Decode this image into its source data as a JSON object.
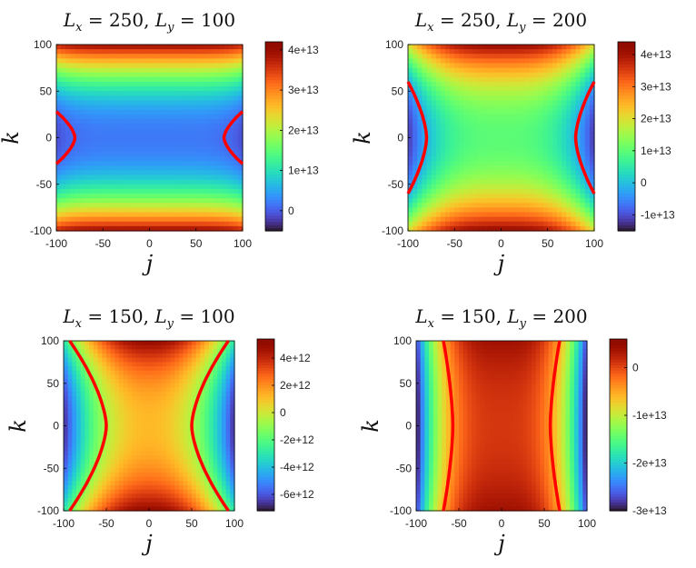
{
  "chart_data": [
    {
      "type": "heatmap",
      "title": "L_x = 250,  L_y = 100",
      "xlabel": "j",
      "ylabel": "k",
      "xlim": [
        -100,
        100
      ],
      "ylim": [
        -100,
        100
      ],
      "xticks": [
        "-100",
        "-50",
        "0",
        "50",
        "100"
      ],
      "yticks": [
        "100",
        "50",
        "0",
        "-50",
        "-100"
      ],
      "colorbar": {
        "min": -5000000000000.0,
        "max": 42000000000000.0,
        "ticks": [
          0,
          10000000000000.0,
          20000000000000.0,
          30000000000000.0,
          40000000000000.0
        ],
        "labels": [
          "0",
          "1e+13",
          "2e+13",
          "3e+13",
          "4e+13"
        ]
      },
      "field": {
        "center": 2000000000000.0,
        "ky_amp": 38000000000000.0,
        "ky_pow": 2.2,
        "jx_amp": -3000000000000.0,
        "jx_pow": 6,
        "corner": 0
      },
      "contour": {
        "shape": "inner",
        "k_extent": 28,
        "j_edge": 100,
        "j_tip": 80
      },
      "colormap": "turbo"
    },
    {
      "type": "heatmap",
      "title": "L_x = 250,  L_y = 200",
      "xlabel": "j",
      "ylabel": "k",
      "xlim": [
        -100,
        100
      ],
      "ylim": [
        -100,
        100
      ],
      "xticks": [
        "-100",
        "-50",
        "0",
        "50",
        "100"
      ],
      "yticks": [
        "100",
        "50",
        "0",
        "-50",
        "-100"
      ],
      "colorbar": {
        "min": -15000000000000.0,
        "max": 44000000000000.0,
        "ticks": [
          -10000000000000.0,
          0,
          10000000000000.0,
          20000000000000.0,
          30000000000000.0,
          40000000000000.0
        ],
        "labels": [
          "-1e+13",
          "0",
          "1e+13",
          "2e+13",
          "3e+13",
          "4e+13"
        ]
      },
      "field": {
        "center": 10000000000000.0,
        "ky_amp": 32000000000000.0,
        "ky_pow": 2.2,
        "jx_amp": -22000000000000.0,
        "jx_pow": 3,
        "corner": 0
      },
      "contour": {
        "shape": "inner",
        "k_extent": 60,
        "j_edge": 100,
        "j_tip": 80
      },
      "colormap": "turbo"
    },
    {
      "type": "heatmap",
      "title": "L_x = 150,  L_y = 100",
      "xlabel": "j",
      "ylabel": "k",
      "xlim": [
        -100,
        100
      ],
      "ylim": [
        -100,
        100
      ],
      "xticks": [
        "-100",
        "-50",
        "0",
        "50",
        "100"
      ],
      "yticks": [
        "100",
        "50",
        "0",
        "-50",
        "-100"
      ],
      "colorbar": {
        "min": -7200000000000.0,
        "max": 5400000000000.0,
        "ticks": [
          -6000000000000.0,
          -4000000000000.0,
          -2000000000000.0,
          0,
          2000000000000.0,
          4000000000000.0
        ],
        "labels": [
          "-6e+12",
          "-4e+12",
          "-2e+12",
          "0",
          "2e+12",
          "4e+12"
        ]
      },
      "field": {
        "center": 1200000000000.0,
        "ky_amp": 3800000000000.0,
        "ky_pow": 2.2,
        "jx_amp": -8000000000000.0,
        "jx_pow": 2.2,
        "corner": 0
      },
      "contour": {
        "shape": "hourglass",
        "k_extent": 100,
        "j_edge": 93,
        "j_tip": 50
      },
      "colormap": "turbo"
    },
    {
      "type": "heatmap",
      "title": "L_x = 150,  L_y = 200",
      "xlabel": "j",
      "ylabel": "k",
      "xlim": [
        -100,
        100
      ],
      "ylim": [
        -100,
        100
      ],
      "xticks": [
        "-100",
        "-50",
        "0",
        "50",
        "100"
      ],
      "yticks": [
        "100",
        "50",
        "0",
        "-50",
        "-100"
      ],
      "colorbar": {
        "min": -30000000000000.0,
        "max": 6000000000000.0,
        "ticks": [
          -30000000000000.0,
          -20000000000000.0,
          -10000000000000.0,
          0
        ],
        "labels": [
          "-3e+13",
          "-2e+13",
          "-1e+13",
          "0"
        ]
      },
      "field": {
        "center": 1000000000000.0,
        "ky_amp": 3000000000000.0,
        "ky_pow": 2.2,
        "jx_amp": -32000000000000.0,
        "jx_pow": 3.2,
        "corner": 0
      },
      "contour": {
        "shape": "hourglass",
        "k_extent": 100,
        "j_edge": 68,
        "j_tip": 57
      },
      "colormap": "turbo"
    }
  ]
}
